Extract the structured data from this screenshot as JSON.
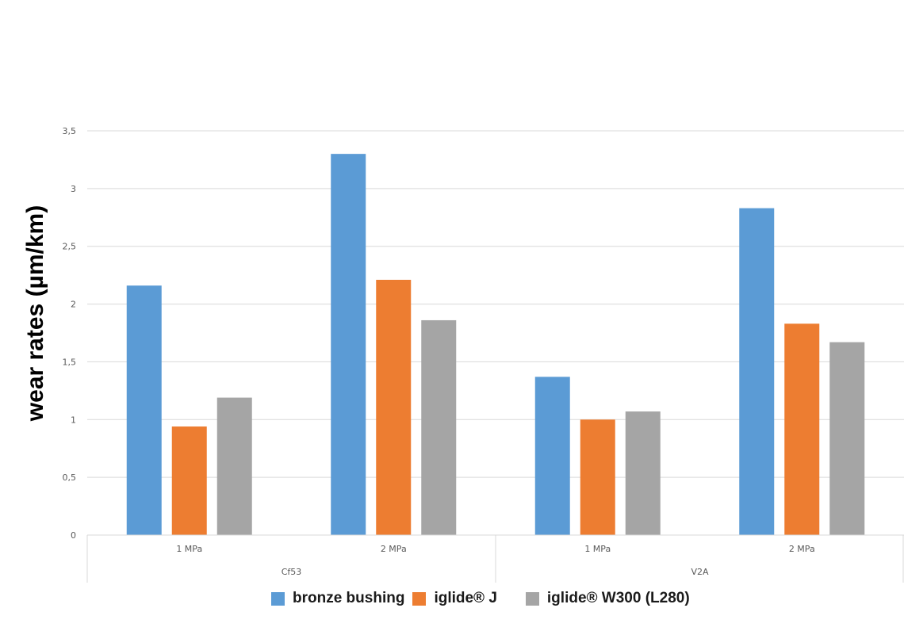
{
  "chart_data": {
    "type": "bar",
    "ylabel": "wear rates (µm/km)",
    "ylim": [
      0,
      3.5
    ],
    "yticks": [
      {
        "value": 0,
        "label": "0"
      },
      {
        "value": 0.5,
        "label": "0,5"
      },
      {
        "value": 1,
        "label": "1"
      },
      {
        "value": 1.5,
        "label": "1,5"
      },
      {
        "value": 2,
        "label": "2"
      },
      {
        "value": 2.5,
        "label": "2,5"
      },
      {
        "value": 3,
        "label": "3"
      },
      {
        "value": 3.5,
        "label": "3,5"
      }
    ],
    "groups": [
      "Cf53",
      "V2A"
    ],
    "categories": [
      "1 MPa",
      "2 MPa",
      "1 MPa",
      "2 MPa"
    ],
    "grid": true,
    "legend_position": "bottom",
    "series": [
      {
        "name": "bronze bushing",
        "color": "#5B9BD5",
        "values": [
          2.16,
          3.3,
          1.37,
          2.83
        ]
      },
      {
        "name": "iglide® J",
        "color": "#ED7D31",
        "values": [
          0.94,
          2.21,
          1.0,
          1.83
        ]
      },
      {
        "name": "iglide® W300 (L280)",
        "color": "#A5A5A5",
        "values": [
          1.19,
          1.86,
          1.07,
          1.67
        ]
      }
    ]
  }
}
